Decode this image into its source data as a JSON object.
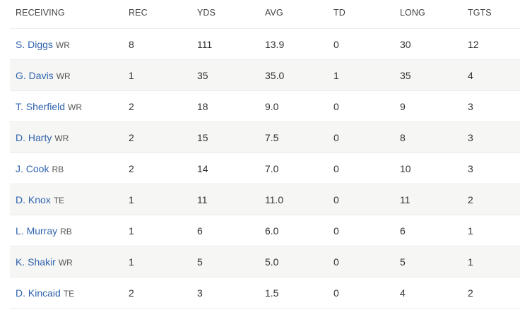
{
  "table": {
    "headers": [
      "RECEIVING",
      "REC",
      "YDS",
      "AVG",
      "TD",
      "LONG",
      "TGTS"
    ],
    "rows": [
      {
        "name": "S. Diggs",
        "pos": "WR",
        "rec": "8",
        "yds": "111",
        "avg": "13.9",
        "td": "0",
        "long": "30",
        "tgts": "12"
      },
      {
        "name": "G. Davis",
        "pos": "WR",
        "rec": "1",
        "yds": "35",
        "avg": "35.0",
        "td": "1",
        "long": "35",
        "tgts": "4"
      },
      {
        "name": "T. Sherfield",
        "pos": "WR",
        "rec": "2",
        "yds": "18",
        "avg": "9.0",
        "td": "0",
        "long": "9",
        "tgts": "3"
      },
      {
        "name": "D. Harty",
        "pos": "WR",
        "rec": "2",
        "yds": "15",
        "avg": "7.5",
        "td": "0",
        "long": "8",
        "tgts": "3"
      },
      {
        "name": "J. Cook",
        "pos": "RB",
        "rec": "2",
        "yds": "14",
        "avg": "7.0",
        "td": "0",
        "long": "10",
        "tgts": "3"
      },
      {
        "name": "D. Knox",
        "pos": "TE",
        "rec": "1",
        "yds": "11",
        "avg": "11.0",
        "td": "0",
        "long": "11",
        "tgts": "2"
      },
      {
        "name": "L. Murray",
        "pos": "RB",
        "rec": "1",
        "yds": "6",
        "avg": "6.0",
        "td": "0",
        "long": "6",
        "tgts": "1"
      },
      {
        "name": "K. Shakir",
        "pos": "WR",
        "rec": "1",
        "yds": "5",
        "avg": "5.0",
        "td": "0",
        "long": "5",
        "tgts": "1"
      },
      {
        "name": "D. Kincaid",
        "pos": "TE",
        "rec": "2",
        "yds": "3",
        "avg": "1.5",
        "td": "0",
        "long": "4",
        "tgts": "2"
      }
    ]
  },
  "colors": {
    "link": "#2f63ad",
    "row_shade": "#f6f6f4",
    "divider": "#ececec"
  }
}
